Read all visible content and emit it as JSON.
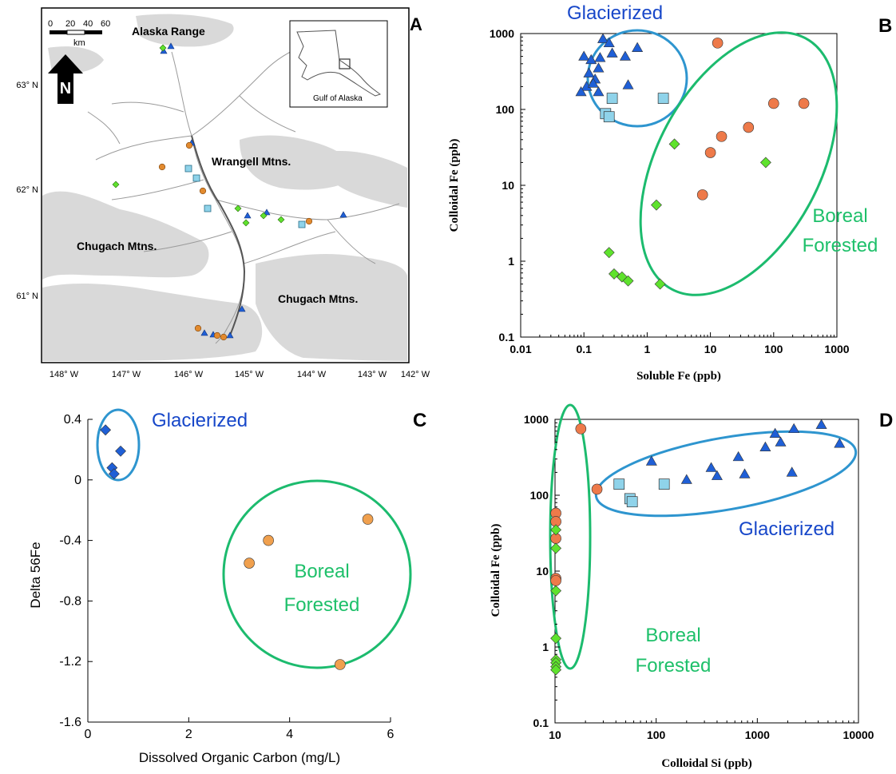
{
  "colors": {
    "glacier_triangle": "#1f5fd6",
    "glacier_square": "#8fd3ea",
    "forest_circle": "#ee7a4a",
    "forest_diamond": "#5fe22d",
    "forest_circle_c": "#f0a04e",
    "glacier_ellipse": "#2e95cf",
    "forest_ellipse": "#1cbb6e",
    "glacier_label": "#1747c9",
    "forest_label": "#1ec06a",
    "land": "#d9d9d9"
  },
  "panel_a": {
    "letter": "A",
    "scale_ticks": [
      "0",
      "20",
      "40",
      "60"
    ],
    "scale_unit": "km",
    "north": "N",
    "inset_label": "Gulf of Alaska",
    "place_labels": [
      "Alaska Range",
      "Wrangell Mtns.",
      "Chugach Mtns.",
      "Chugach Mtns."
    ],
    "lat_labels": [
      "63° N",
      "62° N",
      "61° N"
    ],
    "lon_labels": [
      "148° W",
      "147° W",
      "146° W",
      "145° W",
      "144° W",
      "143° W",
      "142° W"
    ]
  },
  "chart_data": [
    {
      "panel": "B",
      "type": "scatter",
      "xscale": "log",
      "yscale": "log",
      "xlim": [
        0.01,
        1000
      ],
      "ylim": [
        0.1,
        1000
      ],
      "xticks": [
        "0.01",
        "0.1",
        "1",
        "10",
        "100",
        "1000"
      ],
      "yticks": [
        "0.1",
        "1",
        "10",
        "100",
        "1000"
      ],
      "xlabel": "Soluble Fe (ppb)",
      "ylabel": "Colloidal Fe (ppb)",
      "annotations": [
        "Glacierized",
        "Boreal",
        "Forested"
      ],
      "series": [
        {
          "marker": "triangle",
          "color": "#1f5fd6",
          "x": [
            0.2,
            0.25,
            0.1,
            0.13,
            0.18,
            0.12,
            0.17,
            0.15,
            0.11,
            0.14,
            0.28,
            0.45,
            0.7,
            0.09,
            0.17,
            0.5
          ],
          "y": [
            850,
            750,
            500,
            450,
            480,
            300,
            350,
            250,
            200,
            220,
            550,
            500,
            650,
            170,
            170,
            210
          ]
        },
        {
          "marker": "square",
          "color": "#8fd3ea",
          "x": [
            0.28,
            0.22,
            0.25,
            1.8
          ],
          "y": [
            140,
            88,
            80,
            140
          ]
        },
        {
          "marker": "circle",
          "color": "#ee7a4a",
          "x": [
            13,
            100,
            300,
            15,
            40,
            10,
            7.5
          ],
          "y": [
            750,
            120,
            120,
            44,
            58,
            27,
            7.5
          ]
        },
        {
          "marker": "diamond",
          "color": "#5fe22d",
          "x": [
            2.7,
            75,
            1.4,
            0.25,
            0.3,
            0.4,
            0.5,
            1.6
          ],
          "y": [
            35,
            20,
            5.5,
            1.3,
            0.68,
            0.62,
            0.55,
            0.5
          ]
        }
      ]
    },
    {
      "panel": "C",
      "type": "scatter",
      "xlim": [
        0,
        6
      ],
      "ylim": [
        -1.6,
        0.4
      ],
      "xticks": [
        "0",
        "2",
        "4",
        "6"
      ],
      "yticks": [
        "0.4",
        "0",
        "-0.4",
        "-0.8",
        "-1.2",
        "-1.6"
      ],
      "xlabel": "Dissolved Organic Carbon (mg/L)",
      "ylabel": "Delta 56Fe",
      "annotations": [
        "Glacierized",
        "Boreal",
        "Forested"
      ],
      "series": [
        {
          "marker": "diamond",
          "color": "#1f5fd6",
          "x": [
            0.35,
            0.65,
            0.48,
            0.52
          ],
          "y": [
            0.33,
            0.19,
            0.08,
            0.04
          ]
        },
        {
          "marker": "circle",
          "color": "#f0a04e",
          "x": [
            5.55,
            3.58,
            3.2,
            5.0
          ],
          "y": [
            -0.26,
            -0.4,
            -0.55,
            -1.22
          ]
        }
      ]
    },
    {
      "panel": "D",
      "type": "scatter",
      "xscale": "log",
      "yscale": "log",
      "xlim": [
        10,
        10000
      ],
      "ylim": [
        0.1,
        1000
      ],
      "xticks": [
        "10",
        "100",
        "1000",
        "10000"
      ],
      "yticks": [
        "0.1",
        "1",
        "10",
        "100",
        "1000"
      ],
      "xlabel": "Colloidal Si (ppb)",
      "ylabel": "Colloidal Fe (ppb)",
      "annotations": [
        "Glacierized",
        "Boreal",
        "Forested"
      ],
      "series": [
        {
          "marker": "triangle",
          "color": "#1f5fd6",
          "x": [
            4300,
            1500,
            2300,
            6500,
            1700,
            1200,
            650,
            350,
            90,
            200,
            400,
            750,
            2200
          ],
          "y": [
            850,
            650,
            750,
            480,
            500,
            430,
            320,
            230,
            280,
            160,
            180,
            190,
            200
          ]
        },
        {
          "marker": "square",
          "color": "#8fd3ea",
          "x": [
            43,
            120,
            55,
            58
          ],
          "y": [
            140,
            140,
            90,
            82
          ]
        },
        {
          "marker": "circle",
          "color": "#ee7a4a",
          "x": [
            18,
            26,
            10.2,
            10.2,
            10.2,
            10.2,
            10.2
          ],
          "y": [
            750,
            120,
            58,
            45,
            27,
            8,
            7.5
          ]
        },
        {
          "marker": "diamond",
          "color": "#5fe22d",
          "x": [
            10.2,
            10.2,
            10.2,
            10.2,
            10.2,
            10.2,
            10.2,
            10.2
          ],
          "y": [
            35,
            20,
            5.5,
            1.3,
            0.68,
            0.62,
            0.55,
            0.5
          ]
        }
      ]
    }
  ]
}
